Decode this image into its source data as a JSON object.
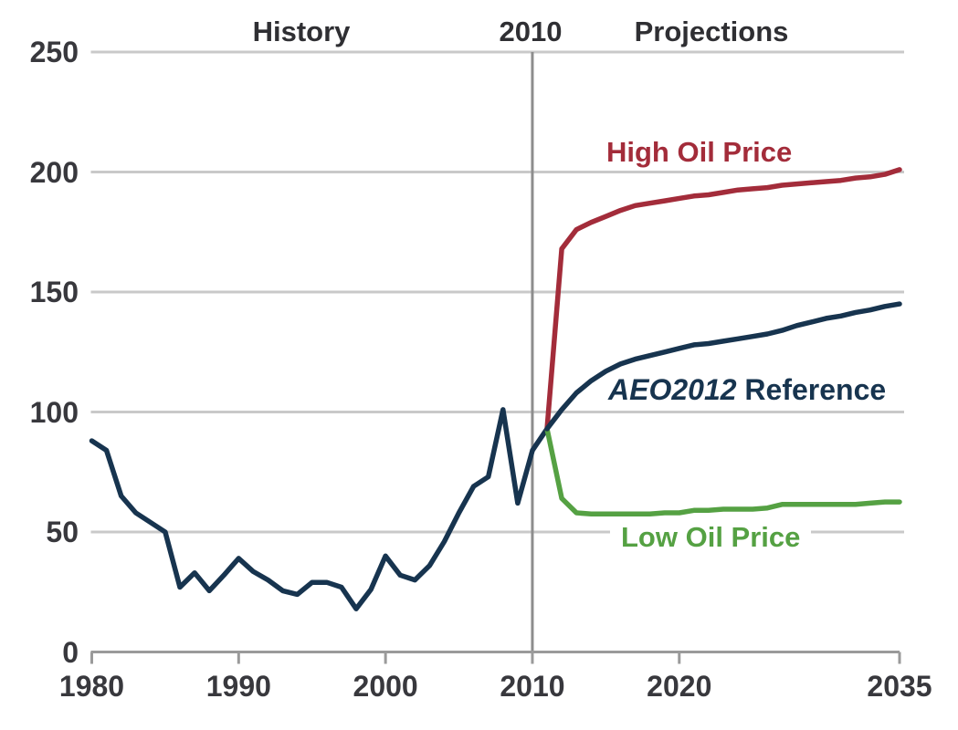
{
  "header": {
    "history_label": "History",
    "divider_year_label": "2010",
    "projections_label": "Projections"
  },
  "series_labels": {
    "high": "High Oil Price",
    "reference_italic": "AEO2012",
    "reference_rest": "Reference",
    "low": "Low Oil Price"
  },
  "colors": {
    "navy": "#17344f",
    "red": "#a32c3a",
    "green": "#55a143",
    "gridline": "#c9c9c9",
    "axis": "#9a9a9a",
    "divider": "#8d8d8d",
    "text": "#38383d"
  },
  "chart_data": {
    "type": "line",
    "title": "",
    "xlabel": "",
    "ylabel": "",
    "xlim": [
      1980,
      2035
    ],
    "ylim": [
      0,
      250
    ],
    "x_ticks": [
      1980,
      1990,
      2000,
      2010,
      2020,
      2035
    ],
    "y_ticks": [
      0,
      50,
      100,
      150,
      200,
      250
    ],
    "grid": "horizontal",
    "divider_x": 2010,
    "legend_position": "inline-annotations",
    "annotations": [
      "History",
      "2010",
      "Projections",
      "High Oil Price",
      "AEO2012 Reference",
      "Low Oil Price"
    ],
    "series": [
      {
        "name": "History",
        "color_key": "navy",
        "x": [
          1980,
          1981,
          1982,
          1983,
          1984,
          1985,
          1986,
          1987,
          1988,
          1989,
          1990,
          1991,
          1992,
          1993,
          1994,
          1995,
          1996,
          1997,
          1998,
          1999,
          2000,
          2001,
          2002,
          2003,
          2004,
          2005,
          2006,
          2007,
          2008,
          2009,
          2010,
          2011
        ],
        "y": [
          88,
          84,
          65,
          58,
          54,
          50,
          27,
          33,
          25.5,
          32,
          39,
          33.5,
          30,
          25.5,
          24,
          29,
          29,
          27,
          18,
          26,
          40,
          32,
          30,
          36,
          46,
          58,
          69,
          73,
          101,
          62,
          84,
          93
        ]
      },
      {
        "name": "Low Oil Price",
        "color_key": "green",
        "x": [
          2011,
          2012,
          2013,
          2014,
          2015,
          2016,
          2017,
          2018,
          2019,
          2020,
          2021,
          2022,
          2023,
          2024,
          2025,
          2026,
          2027,
          2028,
          2029,
          2030,
          2031,
          2032,
          2033,
          2034,
          2035
        ],
        "y": [
          93,
          64,
          58,
          57.5,
          57.5,
          57.5,
          57.5,
          57.5,
          58,
          58,
          59,
          59,
          59.5,
          59.5,
          59.5,
          60,
          61.5,
          61.5,
          61.5,
          61.5,
          61.5,
          61.5,
          62,
          62.5,
          62.5
        ]
      },
      {
        "name": "High Oil Price",
        "color_key": "red",
        "x": [
          2011,
          2012,
          2013,
          2014,
          2015,
          2016,
          2017,
          2018,
          2019,
          2020,
          2021,
          2022,
          2023,
          2024,
          2025,
          2026,
          2027,
          2028,
          2029,
          2030,
          2031,
          2032,
          2033,
          2034,
          2035
        ],
        "y": [
          93,
          168,
          176,
          179,
          181.5,
          184,
          186,
          187,
          188,
          189,
          190,
          190.5,
          191.5,
          192.5,
          193,
          193.5,
          194.5,
          195,
          195.5,
          196,
          196.5,
          197.5,
          198,
          199,
          201
        ]
      },
      {
        "name": "AEO2012 Reference",
        "color_key": "navy",
        "x": [
          2011,
          2012,
          2013,
          2014,
          2015,
          2016,
          2017,
          2018,
          2019,
          2020,
          2021,
          2022,
          2023,
          2024,
          2025,
          2026,
          2027,
          2028,
          2029,
          2030,
          2031,
          2032,
          2033,
          2034,
          2035
        ],
        "y": [
          93,
          101,
          108,
          113,
          117,
          120,
          122,
          123.5,
          125,
          126.5,
          128,
          128.5,
          129.5,
          130.5,
          131.5,
          132.5,
          134,
          136,
          137.5,
          139,
          140,
          141.5,
          142.5,
          144,
          145
        ]
      }
    ]
  }
}
